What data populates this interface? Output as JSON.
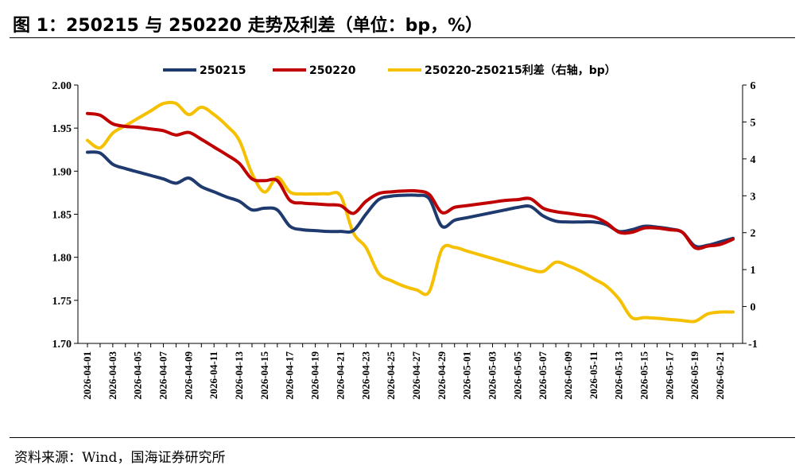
{
  "title": "图 1：250215 与 250220 走势及利差（单位：bp，%）",
  "source": "资料来源：Wind，国海证券研究所",
  "chart_data": {
    "type": "line",
    "title": "图 1：250215 与 250220 走势及利差（单位：bp，%）",
    "xlabel": "",
    "ylabel": "",
    "ylim": [
      1.7,
      2.0
    ],
    "y2lim": [
      -1,
      6
    ],
    "yticks": [
      "1.70",
      "1.75",
      "1.80",
      "1.85",
      "1.90",
      "1.95",
      "2.00"
    ],
    "y2ticks": [
      "-1",
      "0",
      "1",
      "2",
      "3",
      "4",
      "5",
      "6"
    ],
    "grid": false,
    "legend_position": "top",
    "xtick_labels": [
      "2026-04-01",
      "2026-04-03",
      "2026-04-05",
      "2026-04-07",
      "2026-04-09",
      "2026-04-11",
      "2026-04-13",
      "2026-04-15",
      "2026-04-17",
      "2026-04-19",
      "2026-04-21",
      "2026-04-23",
      "2026-04-25",
      "2026-04-27",
      "2026-04-29",
      "2026-05-01",
      "2026-05-03",
      "2026-05-05",
      "2026-05-07",
      "2026-05-09",
      "2026-05-11",
      "2026-05-13",
      "2026-05-15",
      "2026-05-17",
      "2026-05-19",
      "2026-05-21"
    ],
    "x": [
      "2026-04-01",
      "2026-04-02",
      "2026-04-03",
      "2026-04-04",
      "2026-04-05",
      "2026-04-06",
      "2026-04-07",
      "2026-04-08",
      "2026-04-09",
      "2026-04-10",
      "2026-04-11",
      "2026-04-12",
      "2026-04-13",
      "2026-04-14",
      "2026-04-15",
      "2026-04-16",
      "2026-04-17",
      "2026-04-18",
      "2026-04-19",
      "2026-04-20",
      "2026-04-21",
      "2026-04-22",
      "2026-04-23",
      "2026-04-24",
      "2026-04-25",
      "2026-04-26",
      "2026-04-27",
      "2026-04-28",
      "2026-04-29",
      "2026-04-30",
      "2026-05-01",
      "2026-05-02",
      "2026-05-03",
      "2026-05-04",
      "2026-05-05",
      "2026-05-06",
      "2026-05-07",
      "2026-05-08",
      "2026-05-09",
      "2026-05-10",
      "2026-05-11",
      "2026-05-12",
      "2026-05-13",
      "2026-05-14",
      "2026-05-15",
      "2026-05-16",
      "2026-05-17",
      "2026-05-18",
      "2026-05-19",
      "2026-05-20",
      "2026-05-21",
      "2026-05-22"
    ],
    "series": [
      {
        "name": "250215",
        "axis": "left",
        "color": "#1f3a6e",
        "values": [
          1.922,
          1.921,
          1.908,
          1.903,
          1.899,
          1.895,
          1.891,
          1.886,
          1.892,
          1.882,
          1.876,
          1.87,
          1.865,
          1.855,
          1.857,
          1.855,
          1.836,
          1.832,
          1.831,
          1.83,
          1.83,
          1.831,
          1.85,
          1.867,
          1.871,
          1.872,
          1.872,
          1.868,
          1.836,
          1.843,
          1.846,
          1.849,
          1.852,
          1.855,
          1.858,
          1.859,
          1.848,
          1.842,
          1.841,
          1.841,
          1.841,
          1.838,
          1.83,
          1.832,
          1.836,
          1.835,
          1.833,
          1.829,
          1.813,
          1.814,
          1.818,
          1.822
        ]
      },
      {
        "name": "250220",
        "axis": "left",
        "color": "#c00000",
        "values": [
          1.967,
          1.965,
          1.955,
          1.952,
          1.951,
          1.949,
          1.947,
          1.942,
          1.945,
          1.937,
          1.928,
          1.919,
          1.909,
          1.891,
          1.889,
          1.889,
          1.866,
          1.863,
          1.862,
          1.861,
          1.86,
          1.851,
          1.865,
          1.874,
          1.876,
          1.877,
          1.877,
          1.873,
          1.852,
          1.858,
          1.86,
          1.862,
          1.864,
          1.866,
          1.867,
          1.868,
          1.857,
          1.853,
          1.851,
          1.849,
          1.847,
          1.84,
          1.829,
          1.829,
          1.834,
          1.834,
          1.832,
          1.829,
          1.811,
          1.813,
          1.815,
          1.821
        ]
      },
      {
        "name": "250220-250215利差（右轴，bp）",
        "axis": "right",
        "color": "#f5c000",
        "values": [
          4.5,
          4.3,
          4.7,
          4.9,
          5.1,
          5.3,
          5.5,
          5.5,
          5.2,
          5.4,
          5.2,
          4.9,
          4.5,
          3.6,
          3.1,
          3.5,
          3.1,
          3.05,
          3.05,
          3.05,
          3.0,
          2.0,
          1.6,
          0.9,
          0.7,
          0.55,
          0.45,
          0.4,
          1.55,
          1.6,
          1.5,
          1.4,
          1.3,
          1.2,
          1.1,
          1.0,
          0.95,
          1.2,
          1.1,
          0.95,
          0.75,
          0.55,
          0.2,
          -0.3,
          -0.3,
          -0.32,
          -0.35,
          -0.38,
          -0.4,
          -0.2,
          -0.15,
          -0.15
        ]
      }
    ]
  }
}
